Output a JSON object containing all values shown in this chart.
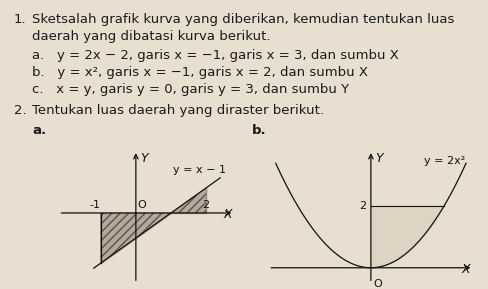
{
  "bg_color": "#e8dfd0",
  "text_color": "#1a1a1a",
  "line1": "Sketsalah grafik kurva yang diberikan, kemudian tentukan luas",
  "line2": "daerah yang dibatasi kurva berikut.",
  "item_a": "a.   y = 2x − 2, garis x = −1, garis x = 3, dan sumbu X",
  "item_b": "b.   y = x², garis x = −1, garis x = 2, dan sumbu X",
  "item_c": "c.   x = y, garis y = 0, garis y = 3, dan sumbu Y",
  "title2": "Tentukan luas daerah yang diraster berikut.",
  "graph_a_func": "y = x − 1",
  "graph_b_func": "y = 2x²",
  "shade_color_a": "#b8a898",
  "shade_color_b": "#ddd4c4",
  "line_color": "#111111",
  "font_size": 9.5,
  "font_size_small": 8.0
}
